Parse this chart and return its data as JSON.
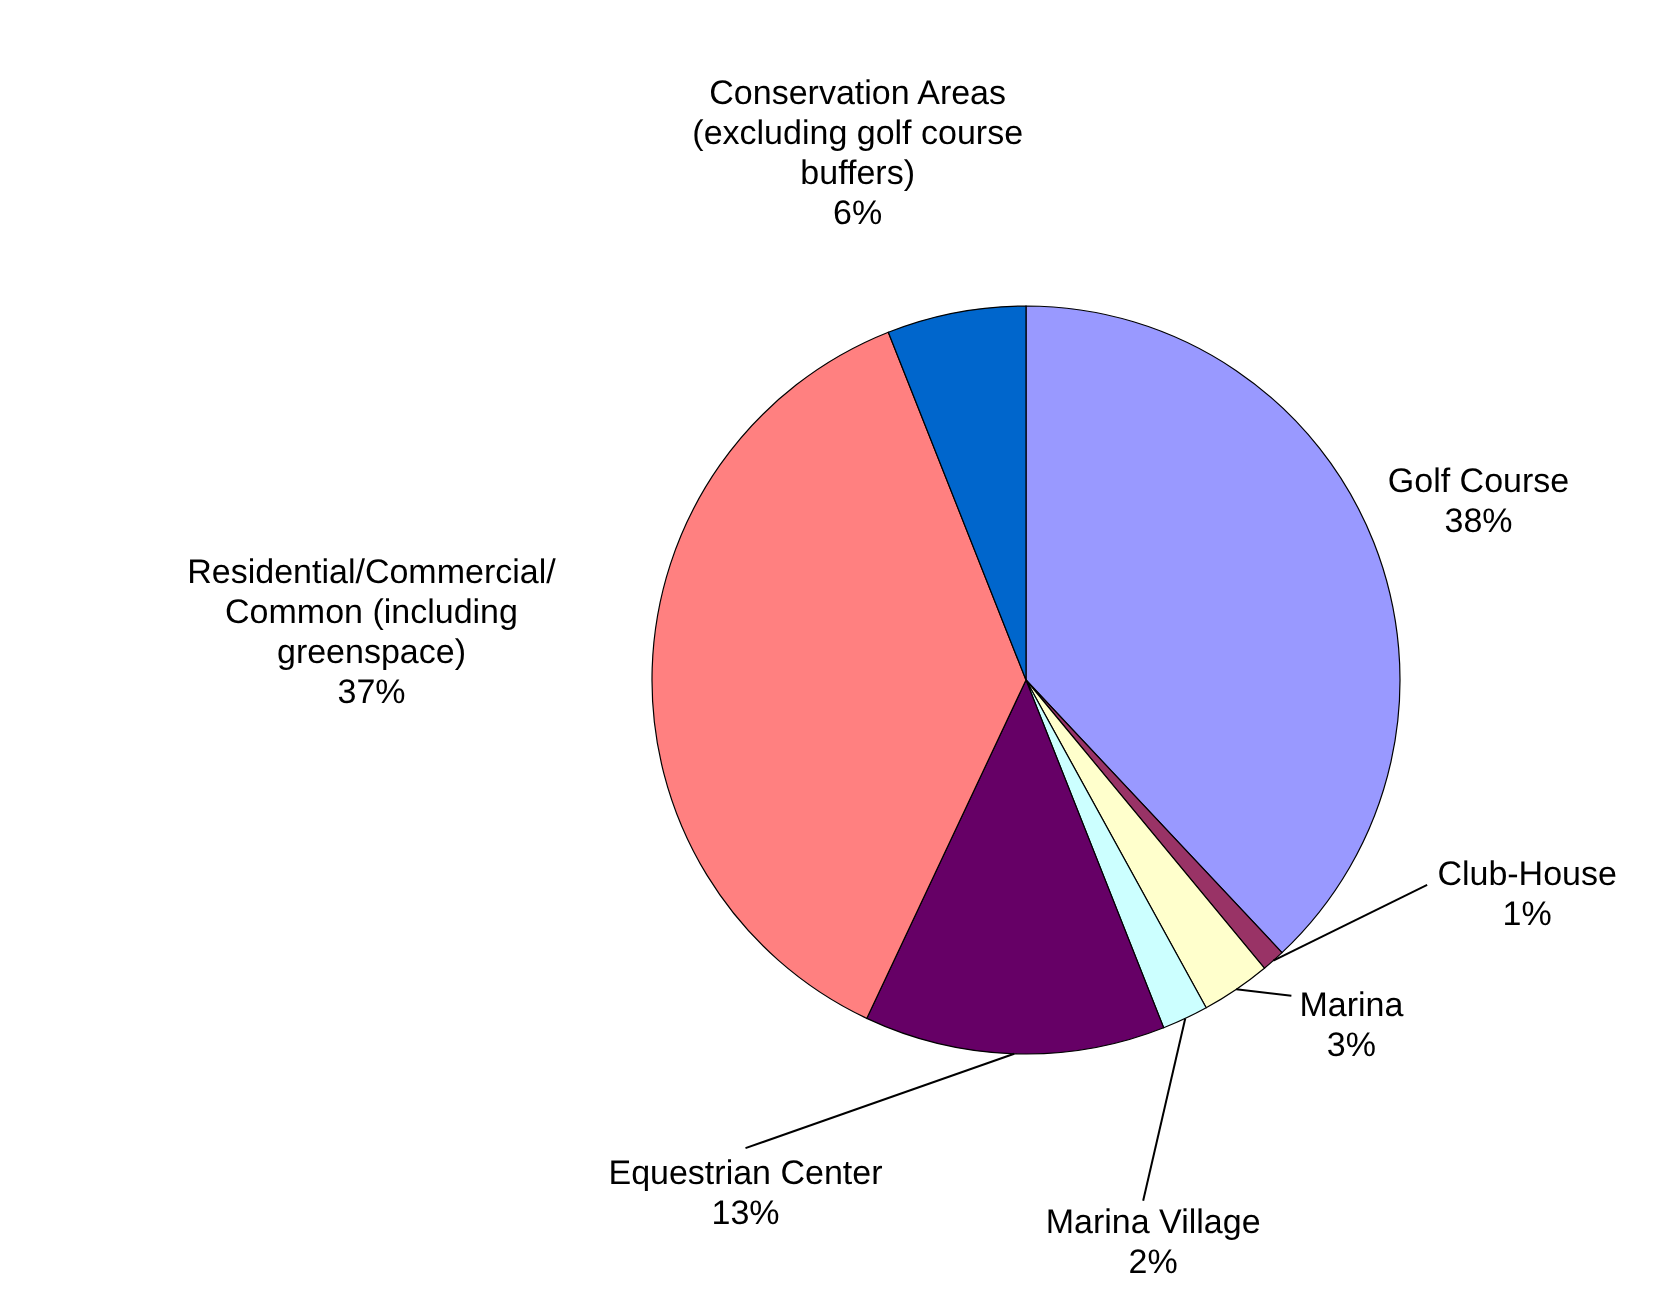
{
  "chart_data": {
    "type": "pie",
    "categories": [
      "Golf Course",
      "Club-House",
      "Marina",
      "Marina Village",
      "Equestrian Center",
      "Residential/Commercial/ Common (including greenspace)",
      "Conservation Areas (excluding golf course buffers)"
    ],
    "values": [
      38,
      1,
      3,
      2,
      13,
      37,
      6
    ],
    "value_labels": [
      "38%",
      "1%",
      "3%",
      "2%",
      "13%",
      "37%",
      "6%"
    ],
    "colors": [
      "#9999ff",
      "#993366",
      "#ffffcc",
      "#ccffff",
      "#660066",
      "#ff8080",
      "#0066cc"
    ]
  }
}
